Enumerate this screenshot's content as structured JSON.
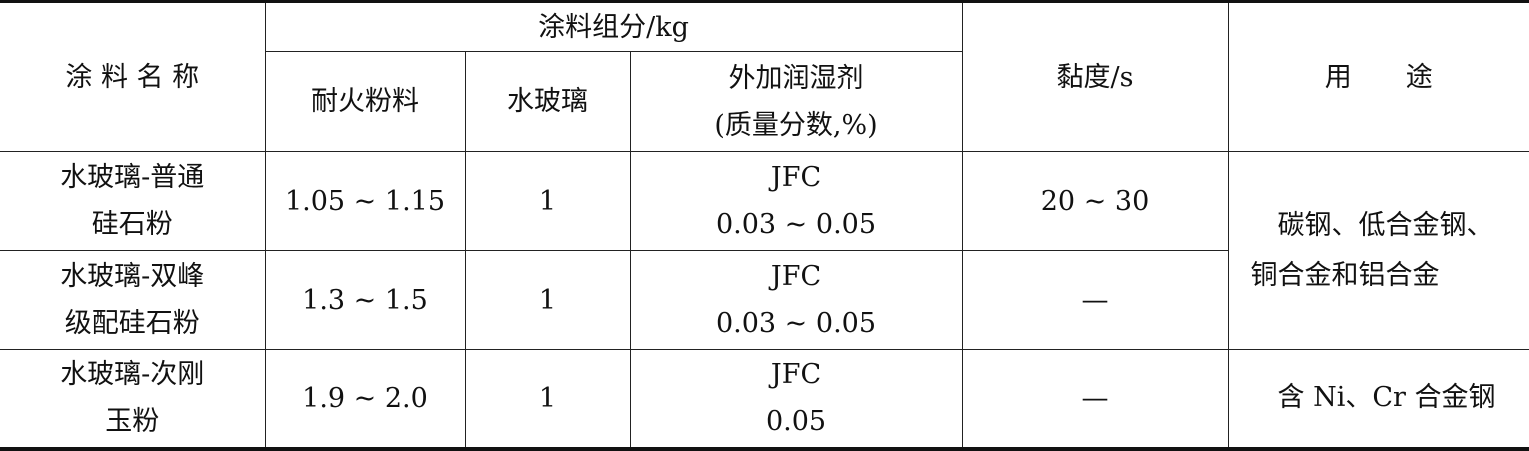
{
  "header": {
    "name": "涂 料 名 称",
    "composition": "涂料组分/kg",
    "refractory_powder": "耐火粉料",
    "water_glass": "水玻璃",
    "wetting_agent_line1": "外加润湿剂",
    "wetting_agent_line2": "(质量分数,%)",
    "viscosity": "黏度/s",
    "usage": "用　　途"
  },
  "rows": [
    {
      "name_line1": "水玻璃-普通",
      "name_line2": "硅石粉",
      "powder": "1.05 ~ 1.15",
      "water_glass": "1",
      "agent_line1": "JFC",
      "agent_line2": "0.03 ~ 0.05",
      "viscosity": "20 ~ 30"
    },
    {
      "name_line1": "水玻璃-双峰",
      "name_line2": "级配硅石粉",
      "powder": "1.3 ~ 1.5",
      "water_glass": "1",
      "agent_line1": "JFC",
      "agent_line2": "0.03 ~ 0.05",
      "viscosity": "—"
    },
    {
      "name_line1": "水玻璃-次刚",
      "name_line2": "玉粉",
      "powder": "1.9 ~ 2.0",
      "water_glass": "1",
      "agent_line1": "JFC",
      "agent_line2": "0.05",
      "viscosity": "—"
    }
  ],
  "usage": {
    "rows_1_2_line1": "　碳钢、低合金钢、",
    "rows_1_2_line2": "铜合金和铝合金",
    "row_3": "　含 Ni、Cr 合金钢"
  }
}
